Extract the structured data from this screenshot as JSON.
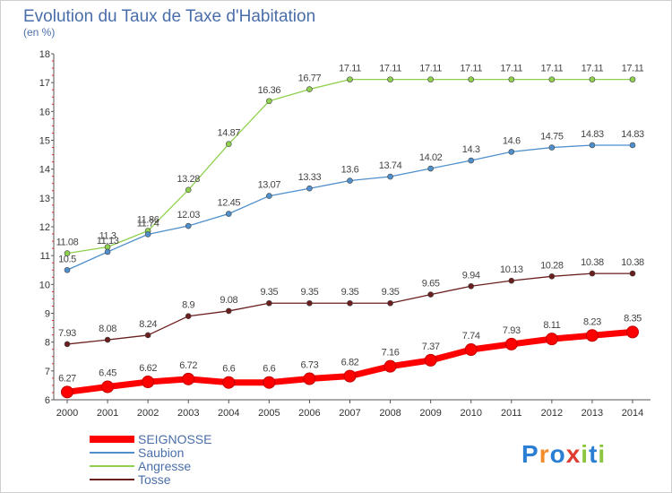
{
  "chart_data": {
    "type": "line",
    "title": "Evolution du Taux de Taxe d'Habitation",
    "subtitle": "(en %)",
    "x": [
      2000,
      2001,
      2002,
      2003,
      2004,
      2005,
      2006,
      2007,
      2008,
      2009,
      2010,
      2011,
      2012,
      2013,
      2014
    ],
    "ylim": [
      6,
      18
    ],
    "yticks": [
      6,
      7,
      8,
      9,
      10,
      11,
      12,
      13,
      14,
      15,
      16,
      17,
      18
    ],
    "grid": false,
    "legend_position": "bottom-left",
    "series": [
      {
        "name": "SEIGNOSSE",
        "color": "#ff0000",
        "values": [
          6.27,
          6.45,
          6.62,
          6.72,
          6.6,
          6.6,
          6.73,
          6.82,
          7.16,
          7.37,
          7.74,
          7.93,
          8.11,
          8.23,
          8.35
        ],
        "labels": [
          "6.27",
          "6.45",
          "6.62",
          "6.72",
          "6.6",
          "6.6",
          "6.73",
          "6.82",
          "7.16",
          "7.37",
          "7.74",
          "7.93",
          "8.11",
          "8.23",
          "8.35"
        ]
      },
      {
        "name": "Saubion",
        "color": "#4f8fcc",
        "values": [
          10.5,
          11.13,
          11.74,
          12.03,
          12.45,
          13.07,
          13.33,
          13.6,
          13.74,
          14.02,
          14.3,
          14.6,
          14.75,
          14.83,
          14.83
        ],
        "labels": [
          "10.5",
          "11.13",
          "11.74",
          "12.03",
          "12.45",
          "13.07",
          "13.33",
          "13.6",
          "13.74",
          "14.02",
          "14.3",
          "14.6",
          "14.75",
          "14.83",
          "14.83"
        ]
      },
      {
        "name": "Angresse",
        "color": "#8fd14f",
        "values": [
          11.08,
          11.3,
          11.86,
          13.28,
          14.87,
          16.36,
          16.77,
          17.11,
          17.11,
          17.11,
          17.11,
          17.11,
          17.11,
          17.11,
          17.11
        ],
        "labels": [
          "11.08",
          "11.3",
          "11.86",
          "13.28",
          "14.87",
          "16.36",
          "16.77",
          "17.11",
          "17.11",
          "17.11",
          "17.11",
          "17.11",
          "17.11",
          "17.11",
          "17.11"
        ]
      },
      {
        "name": "Tosse",
        "color": "#6b1e1e",
        "values": [
          7.93,
          8.08,
          8.24,
          8.9,
          9.08,
          9.35,
          9.35,
          9.35,
          9.35,
          9.65,
          9.94,
          10.13,
          10.28,
          10.38,
          10.38
        ],
        "labels": [
          "7.93",
          "8.08",
          "8.24",
          "8.9",
          "9.08",
          "9.35",
          "9.35",
          "9.35",
          "9.35",
          "9.65",
          "9.94",
          "10.13",
          "10.28",
          "10.38",
          "10.38"
        ]
      }
    ]
  },
  "brand": {
    "letters": [
      "P",
      "r",
      "o",
      "x",
      "i",
      "t",
      "i"
    ],
    "colors": [
      "#2a7fd4",
      "#f28c28",
      "#2a7fd4",
      "#e03c31",
      "#8cc63f",
      "#2a7fd4",
      "#8cc63f"
    ]
  }
}
